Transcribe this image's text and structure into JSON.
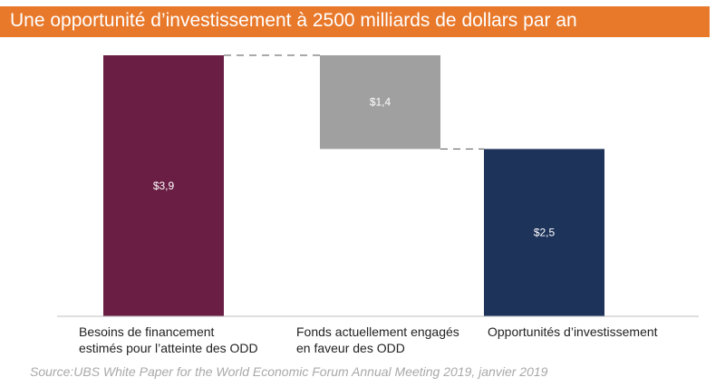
{
  "title": "Une opportunité d’investissement à 2500 milliards de dollars par an",
  "source": "Source:UBS White Paper for the World Economic Forum Annual Meeting 2019, janvier 2019",
  "colors": {
    "header": "#e8782a",
    "needs": "#6a1e44",
    "committed": "#a0a0a0",
    "opportunity": "#1e335a",
    "connector": "#555555"
  },
  "chart_data": {
    "type": "bar",
    "subtype": "waterfall",
    "ylim": [
      0,
      3.9
    ],
    "categories": [
      [
        "Besoins de financement",
        "estimés pour l’atteinte des ODD"
      ],
      [
        "Fonds actuellement engagés",
        "en faveur des ODD"
      ],
      [
        "Opportunités d’investissement"
      ]
    ],
    "bars": [
      {
        "start": 0,
        "end": 3.9,
        "label": "$3,9",
        "color": "#6a1e44"
      },
      {
        "start": 2.5,
        "end": 3.9,
        "label": "$1,4",
        "color": "#a0a0a0"
      },
      {
        "start": 0,
        "end": 2.5,
        "label": "$2,5",
        "color": "#1e335a"
      }
    ],
    "connectors": true,
    "grid": false,
    "legend": false
  }
}
